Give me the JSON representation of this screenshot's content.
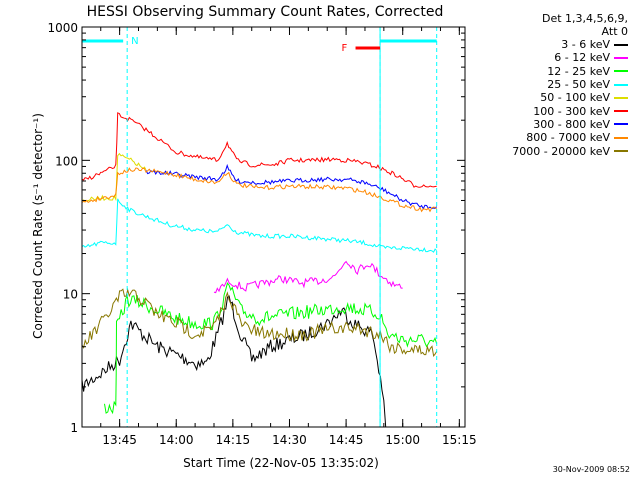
{
  "chart_data": {
    "type": "line",
    "title": "HESSI Observing Summary Count Rates, Corrected",
    "xlabel_prefix": "Start Time (22-Nov-05 13:35:02)",
    "ylabel": "Corrected Count Rate (s⁻¹ detector⁻¹)",
    "y_scale": "log",
    "ylim": [
      1,
      1000
    ],
    "xlim": [
      "13:35:02",
      "15:16:30"
    ],
    "x_ticks": [
      "13:45",
      "14:00",
      "14:15",
      "14:30",
      "14:45",
      "15:00",
      "15:15"
    ],
    "y_ticks": [
      "1",
      "10",
      "100",
      "1000"
    ],
    "legend_header": [
      "Det 1,3,4,5,6,9,",
      "Att 0"
    ],
    "series": [
      {
        "name": "3 - 6 keV",
        "color": "#000000",
        "points": [
          [
            "13:35:02",
            2
          ],
          [
            "13:45:00",
            3.2
          ],
          [
            "13:48:00",
            6
          ],
          [
            "13:51:00",
            5
          ],
          [
            "13:55:00",
            4
          ],
          [
            "14:00:00",
            3.5
          ],
          [
            "14:05:00",
            3
          ],
          [
            "14:08:00",
            3
          ],
          [
            "14:11:00",
            5
          ],
          [
            "14:14:00",
            9.5
          ],
          [
            "14:17:00",
            5
          ],
          [
            "14:20:00",
            3.2
          ],
          [
            "14:25:00",
            4
          ],
          [
            "14:30:00",
            4.5
          ],
          [
            "14:35:00",
            5
          ],
          [
            "14:40:00",
            6
          ],
          [
            "14:44:00",
            7.5
          ],
          [
            "14:47:00",
            6
          ],
          [
            "14:52:00",
            5
          ],
          [
            "14:54:30",
            2
          ],
          [
            "14:55:30",
            1
          ]
        ]
      },
      {
        "name": "6 - 12 keV",
        "color": "#ff00ff",
        "points": [
          [
            "14:10:00",
            10
          ],
          [
            "14:14:00",
            12.5
          ],
          [
            "14:18:00",
            11
          ],
          [
            "14:23:00",
            12
          ],
          [
            "14:28:00",
            13
          ],
          [
            "14:33:00",
            12
          ],
          [
            "14:38:00",
            12.5
          ],
          [
            "14:42:00",
            13.5
          ],
          [
            "14:45:00",
            18
          ],
          [
            "14:48:00",
            15
          ],
          [
            "14:51:00",
            17
          ],
          [
            "14:54:00",
            14
          ],
          [
            "14:57:00",
            12
          ],
          [
            "15:00:00",
            11
          ]
        ]
      },
      {
        "name": "12 - 25 keV",
        "color": "#00ff00",
        "points": [
          [
            "13:41:00",
            1.4
          ],
          [
            "13:44:00",
            1.4
          ],
          [
            "13:44:10",
            5.5
          ],
          [
            "13:47:00",
            9
          ],
          [
            "13:51:00",
            8.5
          ],
          [
            "13:55:00",
            7.5
          ],
          [
            "14:00:00",
            6.5
          ],
          [
            "14:05:00",
            6
          ],
          [
            "14:10:00",
            6
          ],
          [
            "14:14:00",
            11.5
          ],
          [
            "14:17:00",
            7.5
          ],
          [
            "14:22:00",
            6.5
          ],
          [
            "14:30:00",
            7
          ],
          [
            "14:38:00",
            7.5
          ],
          [
            "14:45:00",
            8
          ],
          [
            "14:50:00",
            7.5
          ],
          [
            "14:54:00",
            7
          ],
          [
            "14:56:00",
            5
          ],
          [
            "15:00:00",
            4.5
          ],
          [
            "15:05:00",
            4.5
          ],
          [
            "15:09:00",
            4.2
          ]
        ]
      },
      {
        "name": "25 - 50 keV",
        "color": "#00ffff",
        "points": [
          [
            "13:35:02",
            22
          ],
          [
            "13:40:00",
            24
          ],
          [
            "13:44:00",
            24
          ],
          [
            "13:44:30",
            50
          ],
          [
            "13:48:00",
            42
          ],
          [
            "13:52:00",
            38
          ],
          [
            "13:58:00",
            33
          ],
          [
            "14:05:00",
            30
          ],
          [
            "14:11:00",
            29
          ],
          [
            "14:13:30",
            33
          ],
          [
            "14:16:00",
            29
          ],
          [
            "14:22:00",
            27
          ],
          [
            "14:30:00",
            27
          ],
          [
            "14:38:00",
            26
          ],
          [
            "14:45:00",
            25
          ],
          [
            "14:50:00",
            24
          ],
          [
            "14:55:00",
            22
          ],
          [
            "15:02:00",
            22
          ],
          [
            "15:09:00",
            21
          ]
        ]
      },
      {
        "name": "50 - 100 keV",
        "color": "#dddd00",
        "points": [
          [
            "13:35:02",
            50
          ],
          [
            "13:40:00",
            52
          ],
          [
            "13:44:00",
            52
          ],
          [
            "13:44:30",
            110
          ],
          [
            "13:48:00",
            100
          ],
          [
            "13:50:00",
            92
          ],
          [
            "13:52:00",
            85
          ]
        ]
      },
      {
        "name": "100 - 300 keV",
        "color": "#ff0000",
        "points": [
          [
            "13:35:02",
            70
          ],
          [
            "13:40:00",
            80
          ],
          [
            "13:44:00",
            90
          ],
          [
            "13:44:30",
            220
          ],
          [
            "13:48:00",
            200
          ],
          [
            "13:52:00",
            170
          ],
          [
            "13:56:00",
            140
          ],
          [
            "14:00:00",
            115
          ],
          [
            "14:06:00",
            105
          ],
          [
            "14:11:00",
            100
          ],
          [
            "14:13:30",
            135
          ],
          [
            "14:16:00",
            100
          ],
          [
            "14:20:00",
            92
          ],
          [
            "14:26:00",
            93
          ],
          [
            "14:30:00",
            100
          ],
          [
            "14:36:00",
            100
          ],
          [
            "14:42:00",
            102
          ],
          [
            "14:48:00",
            98
          ],
          [
            "14:53:00",
            90
          ],
          [
            "14:58:00",
            78
          ],
          [
            "15:03:00",
            65
          ],
          [
            "15:09:00",
            64
          ]
        ]
      },
      {
        "name": "300 - 800 keV",
        "color": "#0000ff",
        "points": [
          [
            "13:52:00",
            82
          ],
          [
            "13:58:00",
            80
          ],
          [
            "14:05:00",
            75
          ],
          [
            "14:11:00",
            72
          ],
          [
            "14:13:30",
            88
          ],
          [
            "14:16:00",
            70
          ],
          [
            "14:22:00",
            68
          ],
          [
            "14:30:00",
            70
          ],
          [
            "14:38:00",
            72
          ],
          [
            "14:45:00",
            72
          ],
          [
            "14:50:00",
            68
          ],
          [
            "14:55:00",
            60
          ],
          [
            "15:00:00",
            50
          ],
          [
            "15:05:00",
            45
          ],
          [
            "15:09:00",
            45
          ]
        ]
      },
      {
        "name": "800 - 7000 keV",
        "color": "#ff8800",
        "points": [
          [
            "13:35:02",
            48
          ],
          [
            "13:40:00",
            52
          ],
          [
            "13:44:00",
            55
          ],
          [
            "13:44:30",
            80
          ],
          [
            "13:48:00",
            85
          ],
          [
            "13:52:00",
            84
          ],
          [
            "13:58:00",
            80
          ],
          [
            "14:05:00",
            72
          ],
          [
            "14:11:00",
            68
          ],
          [
            "14:13:30",
            82
          ],
          [
            "14:16:00",
            66
          ],
          [
            "14:22:00",
            62
          ],
          [
            "14:30:00",
            64
          ],
          [
            "14:38:00",
            63
          ],
          [
            "14:45:00",
            62
          ],
          [
            "14:50:00",
            58
          ],
          [
            "14:55:00",
            52
          ],
          [
            "15:00:00",
            46
          ],
          [
            "15:05:00",
            43
          ],
          [
            "15:09:00",
            43
          ]
        ]
      },
      {
        "name": "7000 - 20000 keV",
        "color": "#887700",
        "points": [
          [
            "13:35:02",
            4
          ],
          [
            "13:38:00",
            5
          ],
          [
            "13:42:00",
            7
          ],
          [
            "13:45:00",
            9.5
          ],
          [
            "13:48:00",
            10
          ],
          [
            "13:51:00",
            9
          ],
          [
            "13:55:00",
            7
          ],
          [
            "14:00:00",
            6
          ],
          [
            "14:05:00",
            5
          ],
          [
            "14:10:00",
            5.5
          ],
          [
            "14:14:00",
            10
          ],
          [
            "14:17:00",
            6
          ],
          [
            "14:22:00",
            5
          ],
          [
            "14:28:00",
            5
          ],
          [
            "14:35:00",
            5
          ],
          [
            "14:42:00",
            5.5
          ],
          [
            "14:48:00",
            5.5
          ],
          [
            "14:54:00",
            5
          ],
          [
            "14:57:00",
            4
          ],
          [
            "15:02:00",
            3.8
          ],
          [
            "15:09:00",
            3.7
          ]
        ]
      }
    ],
    "annotations": {
      "flag_N": {
        "label": "N",
        "start": "13:35:02",
        "end": "13:47:00",
        "color": "#00ffff"
      },
      "flag_N_end": {
        "start": "14:54:00",
        "end": "15:09:00",
        "color": "#00ffff"
      },
      "flag_F": {
        "label": "F",
        "start": "14:47:30",
        "end": "14:54:00",
        "color": "#ff0000"
      },
      "vlines": [
        "13:47:00",
        "14:54:00",
        "15:09:00"
      ]
    },
    "grid": false,
    "legend_position": "top-right, outside plot"
  },
  "footer": "30-Nov-2009 08:52"
}
